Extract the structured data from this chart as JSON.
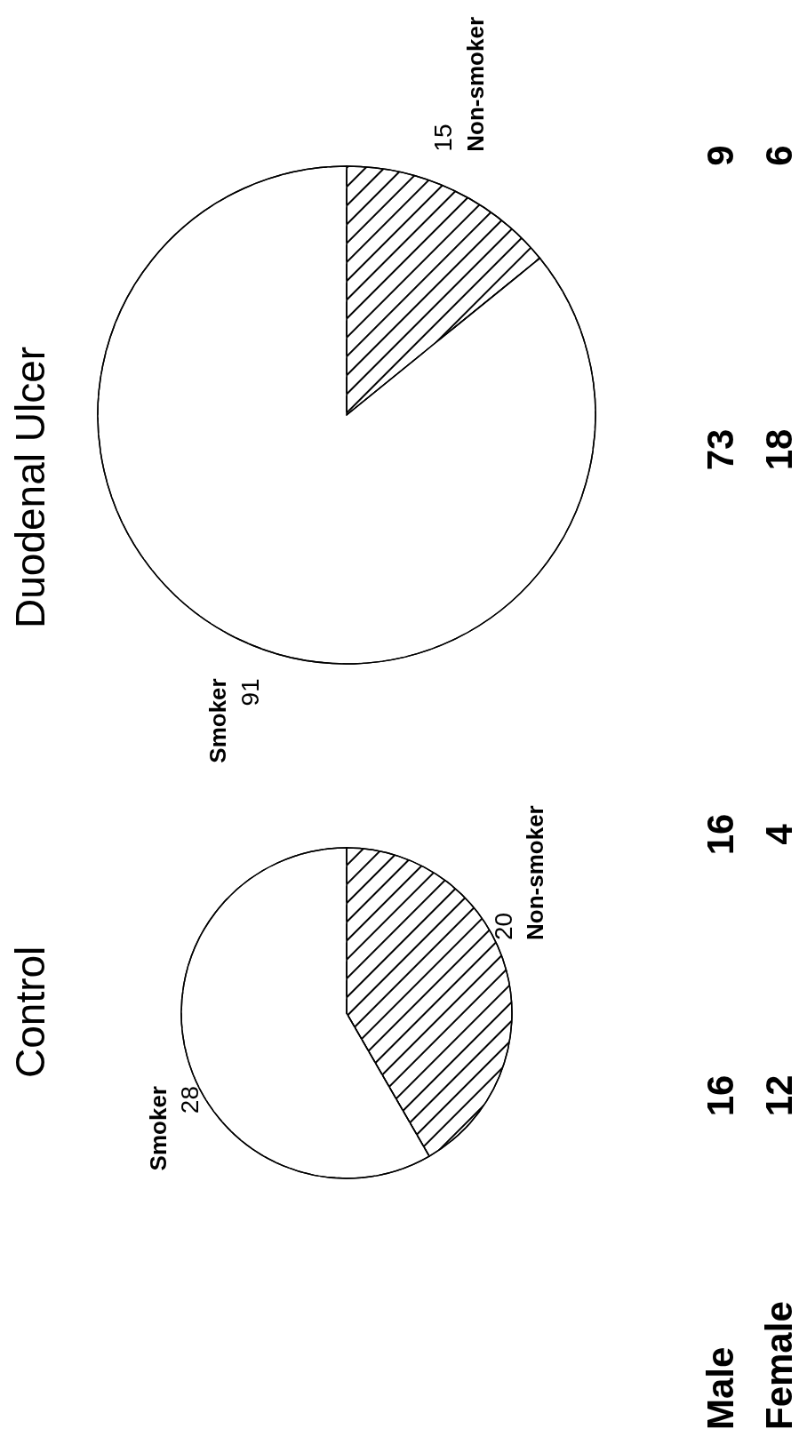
{
  "chart_data": [
    {
      "type": "pie",
      "title": "Control",
      "categories": [
        "Non-smoker",
        "Smoker"
      ],
      "values": [
        20,
        28
      ],
      "colors": [
        "#000000",
        "#ffffff"
      ],
      "data_labels": true,
      "legend": false,
      "annotations": [
        "Male",
        "16",
        "16",
        "Female",
        "12",
        "4"
      ]
    },
    {
      "type": "pie",
      "title": "Duodenal Ulcer",
      "categories": [
        "Non-smoker",
        "Smoker"
      ],
      "values": [
        15,
        91
      ],
      "colors": [
        "#000000",
        "#ffffff"
      ],
      "data_labels": true,
      "legend": false,
      "annotations": [
        "73",
        "9",
        "18",
        "6"
      ]
    }
  ]
}
